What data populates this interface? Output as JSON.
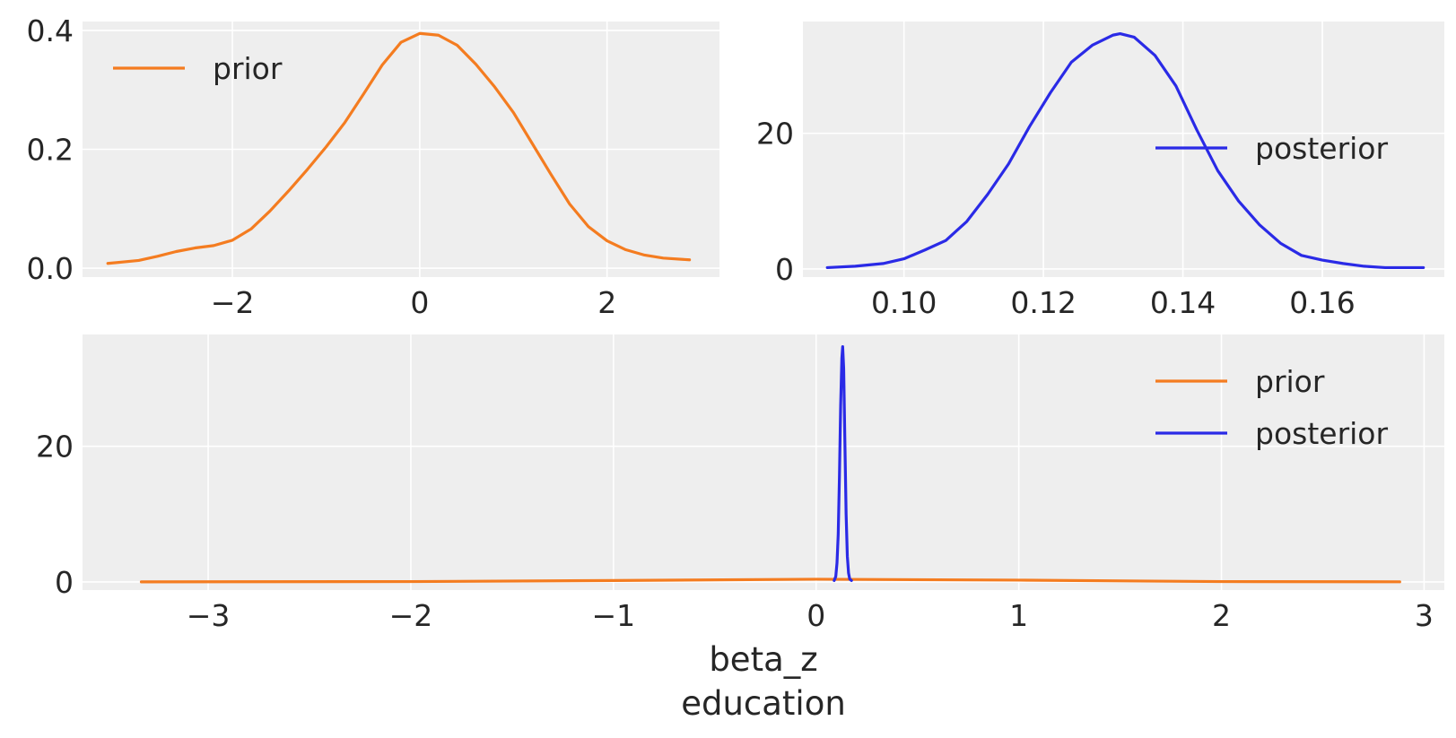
{
  "colors": {
    "prior": "#f47c20",
    "posterior": "#2a2ae6",
    "background": "#eeeeee",
    "grid": "#ffffff",
    "text": "#262626"
  },
  "chart_data": [
    {
      "type": "line",
      "id": "prior",
      "xlim": [
        -3.6,
        3.2
      ],
      "ylim": [
        -0.015,
        0.415
      ],
      "xticks": [
        -2,
        0,
        2
      ],
      "xtick_labels": [
        "−2",
        "0",
        "2"
      ],
      "yticks": [
        0.0,
        0.2,
        0.4
      ],
      "ytick_labels": [
        "0.0",
        "0.2",
        "0.4"
      ],
      "grid": true,
      "legend": "upper-left",
      "series": [
        {
          "name": "prior",
          "color_key": "prior",
          "x": [
            -3.33,
            -3.0,
            -2.8,
            -2.6,
            -2.4,
            -2.2,
            -2.0,
            -1.8,
            -1.6,
            -1.4,
            -1.2,
            -1.0,
            -0.8,
            -0.6,
            -0.4,
            -0.2,
            0.0,
            0.2,
            0.4,
            0.6,
            0.8,
            1.0,
            1.2,
            1.4,
            1.6,
            1.8,
            2.0,
            2.2,
            2.4,
            2.6,
            2.88
          ],
          "y": [
            0.008,
            0.013,
            0.02,
            0.028,
            0.034,
            0.038,
            0.047,
            0.066,
            0.096,
            0.13,
            0.166,
            0.204,
            0.245,
            0.293,
            0.342,
            0.38,
            0.395,
            0.392,
            0.375,
            0.343,
            0.305,
            0.262,
            0.21,
            0.158,
            0.108,
            0.07,
            0.046,
            0.031,
            0.022,
            0.017,
            0.014
          ]
        }
      ]
    },
    {
      "type": "line",
      "id": "posterior",
      "xlim": [
        0.0855,
        0.1775
      ],
      "ylim": [
        -1.2,
        36.5
      ],
      "xticks": [
        0.1,
        0.12,
        0.14,
        0.16
      ],
      "xtick_labels": [
        "0.10",
        "0.12",
        "0.14",
        "0.16"
      ],
      "yticks": [
        0,
        20
      ],
      "ytick_labels": [
        "0",
        "20"
      ],
      "grid": true,
      "legend": "right",
      "series": [
        {
          "name": "posterior",
          "color_key": "posterior",
          "x": [
            0.089,
            0.093,
            0.097,
            0.1,
            0.103,
            0.106,
            0.109,
            0.112,
            0.115,
            0.118,
            0.121,
            0.124,
            0.127,
            0.13,
            0.131,
            0.133,
            0.136,
            0.139,
            0.142,
            0.145,
            0.148,
            0.151,
            0.154,
            0.157,
            0.16,
            0.163,
            0.166,
            0.169,
            0.172,
            0.1745
          ],
          "y": [
            0.2,
            0.4,
            0.8,
            1.5,
            2.8,
            4.2,
            7.0,
            11.0,
            15.5,
            21.0,
            26.0,
            30.5,
            33.0,
            34.5,
            34.7,
            34.2,
            31.5,
            27.0,
            20.5,
            14.5,
            10.0,
            6.5,
            3.8,
            2.0,
            1.3,
            0.8,
            0.4,
            0.2,
            0.2,
            0.2
          ]
        }
      ]
    },
    {
      "type": "line",
      "id": "combined",
      "xlim": [
        -3.62,
        3.1
      ],
      "ylim": [
        -1.2,
        36.5
      ],
      "xticks": [
        -3,
        -2,
        -1,
        0,
        1,
        2,
        3
      ],
      "xtick_labels": [
        "−3",
        "−2",
        "−1",
        "0",
        "1",
        "2",
        "3"
      ],
      "yticks": [
        0,
        20
      ],
      "ytick_labels": [
        "0",
        "20"
      ],
      "xlabel": "beta_z",
      "xlabel2": "education",
      "grid": true,
      "legend": "upper-right",
      "series": [
        {
          "name": "prior",
          "color_key": "prior",
          "x": [
            -3.33,
            -2.0,
            -1.0,
            0.0,
            1.0,
            2.0,
            2.88
          ],
          "y": [
            0.008,
            0.047,
            0.204,
            0.395,
            0.262,
            0.046,
            0.014
          ]
        },
        {
          "name": "posterior",
          "color_key": "posterior",
          "x": [
            0.089,
            0.097,
            0.103,
            0.109,
            0.115,
            0.121,
            0.127,
            0.131,
            0.136,
            0.142,
            0.148,
            0.154,
            0.16,
            0.166,
            0.1745
          ],
          "y": [
            0.2,
            0.8,
            2.8,
            7.0,
            15.5,
            26.0,
            33.0,
            34.7,
            31.5,
            20.5,
            10.0,
            3.8,
            1.3,
            0.4,
            0.2
          ]
        }
      ]
    }
  ]
}
